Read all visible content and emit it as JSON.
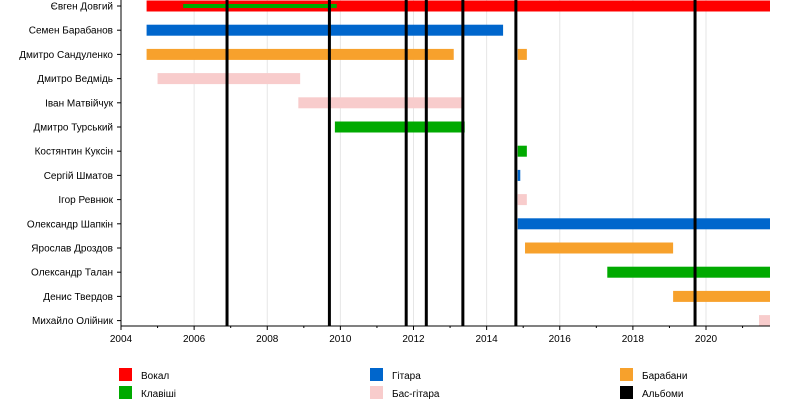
{
  "chart_data": {
    "type": "timeline",
    "title": "",
    "xlabel": "",
    "ylabel": "",
    "xlim": [
      2004.0,
      2021.75
    ],
    "x_ticks": [
      2004,
      2006,
      2008,
      2010,
      2012,
      2014,
      2016,
      2018,
      2020
    ],
    "members": [
      "Євген Довгий",
      "Семен Барабанов",
      "Дмитро Сандуленко",
      "Дмитро Ведмідь",
      "Іван Матвійчук",
      "Дмитро Турський",
      "Костянтин Куксін",
      "Сергій Шматов",
      "Ігор Ревнюк",
      "Олександр Шапкін",
      "Ярослав Дроздов",
      "Олександр Талан",
      "Денис Твердов",
      "Михайло Олійник"
    ],
    "roles": [
      {
        "key": "vocals",
        "label": "Вокал",
        "color": "#ff0000"
      },
      {
        "key": "guitar",
        "label": "Гітара",
        "color": "#0066cc"
      },
      {
        "key": "drums",
        "label": "Барабани",
        "color": "#f7a12c"
      },
      {
        "key": "keys",
        "label": "Клавіші",
        "color": "#00aa00"
      },
      {
        "key": "bass",
        "label": "Бас-гітара",
        "color": "#f8cccc"
      },
      {
        "key": "albums",
        "label": "Альбоми",
        "color": "#000000"
      }
    ],
    "bars": [
      {
        "member": 0,
        "role": "vocals",
        "start": 2004.7,
        "end": 2021.75
      },
      {
        "member": 0,
        "role": "keys",
        "start": 2005.7,
        "end": 2009.9,
        "thin": true
      },
      {
        "member": 1,
        "role": "guitar",
        "start": 2004.7,
        "end": 2014.45
      },
      {
        "member": 2,
        "role": "drums",
        "start": 2004.7,
        "end": 2013.1
      },
      {
        "member": 2,
        "role": "drums",
        "start": 2014.85,
        "end": 2015.1
      },
      {
        "member": 3,
        "role": "bass",
        "start": 2005.0,
        "end": 2008.9
      },
      {
        "member": 4,
        "role": "bass",
        "start": 2008.85,
        "end": 2013.35
      },
      {
        "member": 5,
        "role": "keys",
        "start": 2009.85,
        "end": 2013.4
      },
      {
        "member": 6,
        "role": "keys",
        "start": 2014.85,
        "end": 2015.1
      },
      {
        "member": 7,
        "role": "guitar",
        "start": 2014.85,
        "end": 2014.92
      },
      {
        "member": 8,
        "role": "bass",
        "start": 2014.85,
        "end": 2015.1
      },
      {
        "member": 9,
        "role": "guitar",
        "start": 2014.85,
        "end": 2021.75
      },
      {
        "member": 10,
        "role": "drums",
        "start": 2015.05,
        "end": 2019.1
      },
      {
        "member": 11,
        "role": "keys",
        "start": 2017.3,
        "end": 2021.75
      },
      {
        "member": 12,
        "role": "drums",
        "start": 2019.1,
        "end": 2021.75
      },
      {
        "member": 13,
        "role": "bass",
        "start": 2021.45,
        "end": 2021.75
      }
    ],
    "albums": [
      2006.9,
      2009.7,
      2011.8,
      2012.35,
      2013.35,
      2014.8,
      2019.7
    ]
  }
}
